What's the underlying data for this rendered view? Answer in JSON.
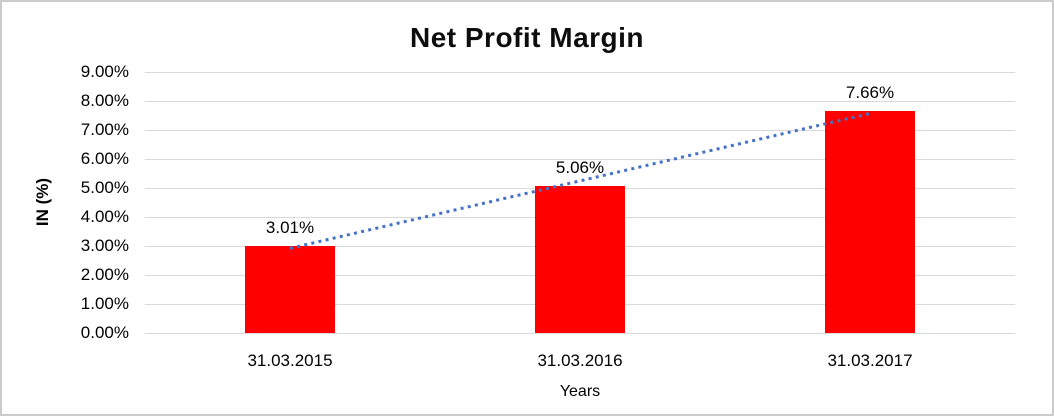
{
  "chart_data": {
    "type": "bar",
    "title": "Net Profit Margin",
    "xlabel": "Years",
    "ylabel": "IN (%)",
    "categories": [
      "31.03.2015",
      "31.03.2016",
      "31.03.2017"
    ],
    "series": [
      {
        "name": "Net Profit Margin",
        "values": [
          3.01,
          5.06,
          7.66
        ]
      }
    ],
    "data_labels": [
      "3.01%",
      "5.06%",
      "7.66%"
    ],
    "y_ticks": [
      "9.00%",
      "8.00%",
      "7.00%",
      "6.00%",
      "5.00%",
      "4.00%",
      "3.00%",
      "2.00%",
      "1.00%",
      "0.00%"
    ],
    "ylim": [
      0,
      9
    ],
    "grid": true,
    "legend": "none",
    "bar_color": "#FF0000",
    "gridline_color": "#d9d9d9",
    "trendline": {
      "type": "linear",
      "style": "dotted",
      "color": "#4472C4",
      "start_value": 2.92,
      "end_value": 7.57
    }
  }
}
